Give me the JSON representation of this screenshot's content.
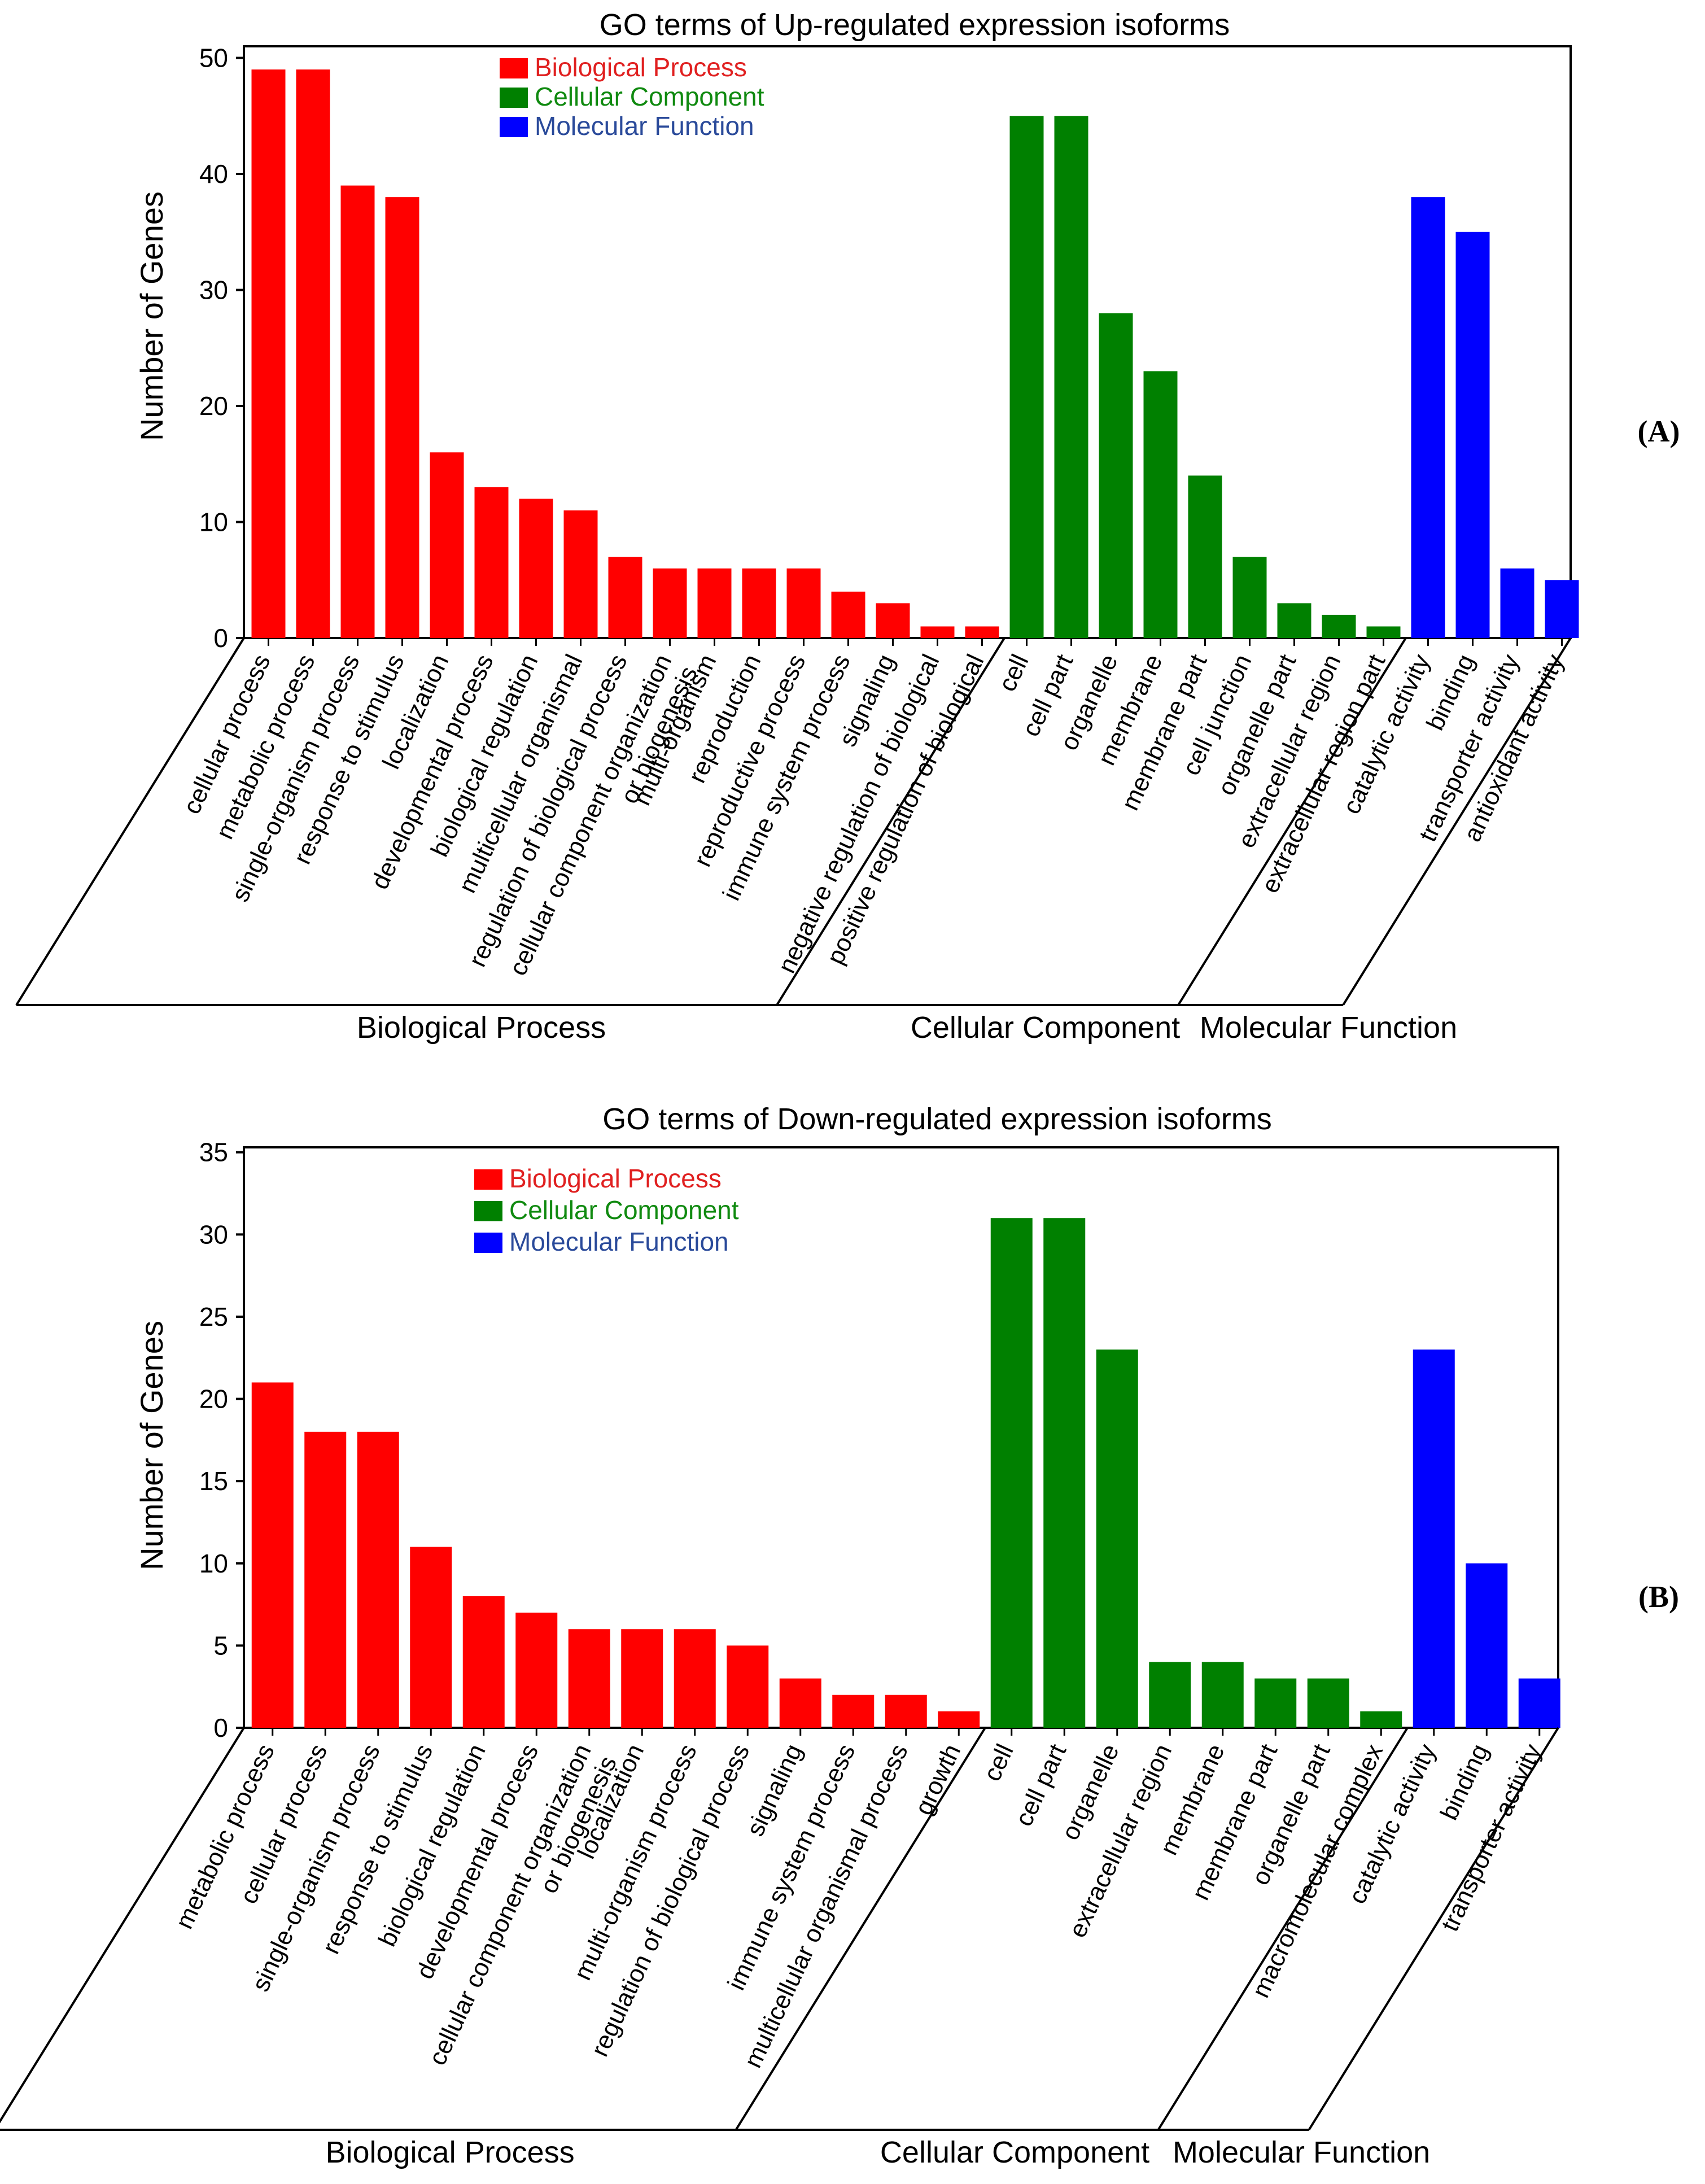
{
  "figure": {
    "panel_labels": [
      "(A)",
      "(B)"
    ]
  },
  "colors": {
    "Biological Process": "#ff0000",
    "Cellular Component": "#008000",
    "Molecular Function": "#0000ff",
    "legend_text": {
      "Biological Process": "#e02020",
      "Cellular Component": "#108a10",
      "Molecular Function": "#2a4a9a"
    }
  },
  "chart_data": [
    {
      "type": "bar",
      "title": "GO terms of Up-regulated expression isoforms",
      "ylabel": "Number of Genes",
      "ylim": [
        0,
        51
      ],
      "yticks": [
        0,
        10,
        20,
        30,
        40,
        50
      ],
      "legend": [
        "Biological Process",
        "Cellular Component",
        "Molecular Function"
      ],
      "legend_position": "top-left",
      "groups": [
        {
          "name": "Biological Process",
          "categories": [
            [
              "cellular process"
            ],
            [
              "metabolic process"
            ],
            [
              "single-organism process"
            ],
            [
              "response to stimulus"
            ],
            [
              "localization"
            ],
            [
              "developmental process"
            ],
            [
              "biological regulation"
            ],
            [
              "multicellular organismal"
            ],
            [
              "regulation of biological process"
            ],
            [
              "cellular component organization",
              "or biogenesis"
            ],
            [
              "multi-organism"
            ],
            [
              "reproduction"
            ],
            [
              "reproductive process"
            ],
            [
              "immune system process"
            ],
            [
              "signaling"
            ],
            [
              "negative regulation of biological"
            ],
            [
              "positive regulation of biological"
            ]
          ],
          "values": [
            49,
            49,
            39,
            38,
            16,
            13,
            12,
            11,
            7,
            6,
            6,
            6,
            6,
            4,
            3,
            1,
            1
          ]
        },
        {
          "name": "Cellular Component",
          "categories": [
            [
              "cell"
            ],
            [
              "cell part"
            ],
            [
              "organelle"
            ],
            [
              "membrane"
            ],
            [
              "membrane part"
            ],
            [
              "cell junction"
            ],
            [
              "organelle part"
            ],
            [
              "extracellular region"
            ],
            [
              "extracellular region part"
            ]
          ],
          "values": [
            45,
            45,
            28,
            23,
            14,
            7,
            3,
            2,
            1
          ]
        },
        {
          "name": "Molecular Function",
          "categories": [
            [
              "catalytic activity"
            ],
            [
              "binding"
            ],
            [
              "transporter activity"
            ],
            [
              "antioxidant activity"
            ]
          ],
          "values": [
            38,
            35,
            6,
            5
          ]
        }
      ]
    },
    {
      "type": "bar",
      "title": "GO terms of Down-regulated expression isoforms",
      "ylabel": "Number of Genes",
      "ylim": [
        0,
        35.3
      ],
      "yticks": [
        0,
        5,
        10,
        15,
        20,
        25,
        30,
        35
      ],
      "legend": [
        "Biological Process",
        "Cellular Component",
        "Molecular Function"
      ],
      "legend_position": "top-left",
      "groups": [
        {
          "name": "Biological Process",
          "categories": [
            [
              "metabolic process"
            ],
            [
              "cellular process"
            ],
            [
              "single-organism process"
            ],
            [
              "response to stimulus"
            ],
            [
              "biological regulation"
            ],
            [
              "developmental process"
            ],
            [
              "cellular component organization",
              "or biogenesis"
            ],
            [
              "localization"
            ],
            [
              "multi-organism process"
            ],
            [
              "regulation of biological process"
            ],
            [
              "signaling"
            ],
            [
              "immune system process"
            ],
            [
              "multicellular organismal process"
            ],
            [
              "growth"
            ]
          ],
          "values": [
            21,
            18,
            18,
            11,
            8,
            7,
            6,
            6,
            6,
            5,
            3,
            2,
            2,
            1
          ]
        },
        {
          "name": "Cellular Component",
          "categories": [
            [
              "cell"
            ],
            [
              "cell part"
            ],
            [
              "organelle"
            ],
            [
              "extracellular region"
            ],
            [
              "membrane"
            ],
            [
              "membrane part"
            ],
            [
              "organelle part"
            ],
            [
              "macromolecular complex"
            ]
          ],
          "values": [
            31,
            31,
            23,
            4,
            4,
            3,
            3,
            1
          ]
        },
        {
          "name": "Molecular Function",
          "categories": [
            [
              "catalytic activity"
            ],
            [
              "binding"
            ],
            [
              "transporter activity"
            ]
          ],
          "values": [
            23,
            10,
            3
          ]
        }
      ]
    }
  ]
}
